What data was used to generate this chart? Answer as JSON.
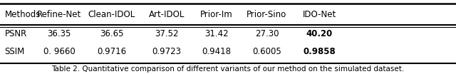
{
  "columns": [
    "Methods",
    "Refine-Net",
    "Clean-IDOL",
    "Art-IDOL",
    "Prior-Im",
    "Prior-Sino",
    "IDO-Net"
  ],
  "rows": [
    [
      "PSNR",
      "36.35",
      "36.65",
      "37.52",
      "31.42",
      "27.30",
      "40.20"
    ],
    [
      "SSIM",
      "0. 9660",
      "0.9716",
      "0.9723",
      "0.9418",
      "0.6005",
      "0.9858"
    ]
  ],
  "bold_last_col": true,
  "caption": "Table 2. Quantitative comparison of different variants of our method on the simulated dataset.",
  "bg_color": "#ffffff",
  "text_color": "#000000",
  "figsize": [
    6.4,
    1.04
  ],
  "dpi": 100
}
